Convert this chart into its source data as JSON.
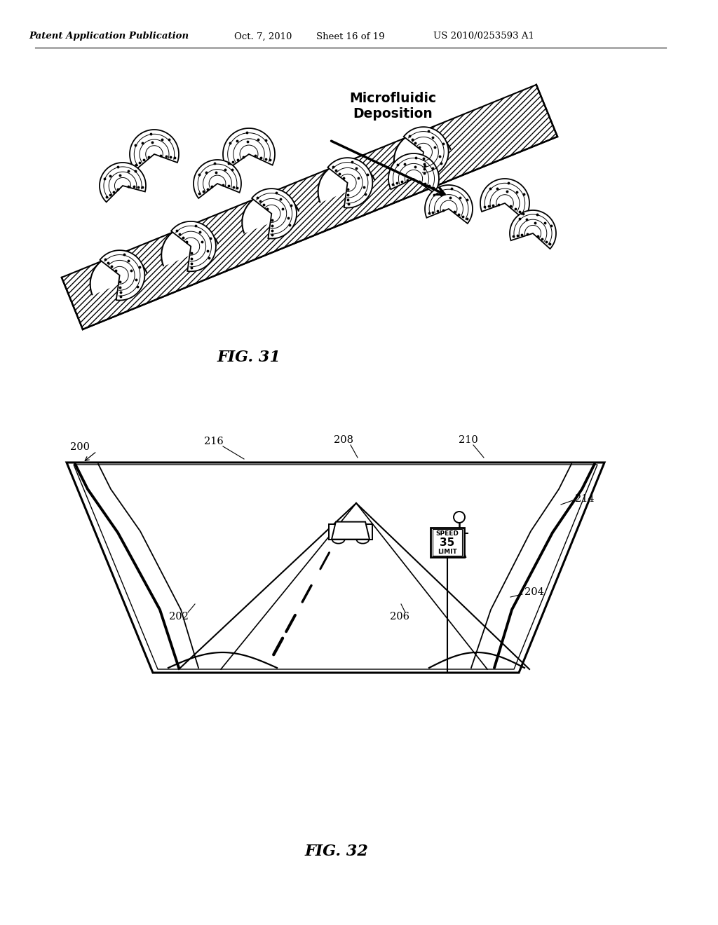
{
  "background_color": "#ffffff",
  "header_text": "Patent Application Publication",
  "header_date": "Oct. 7, 2010",
  "header_sheet": "Sheet 16 of 19",
  "header_patent": "US 2010/0253593 A1",
  "fig31_label": "FIG. 31",
  "fig32_label": "FIG. 32",
  "microfluidic_text": "Microfluidic\nDeposition"
}
